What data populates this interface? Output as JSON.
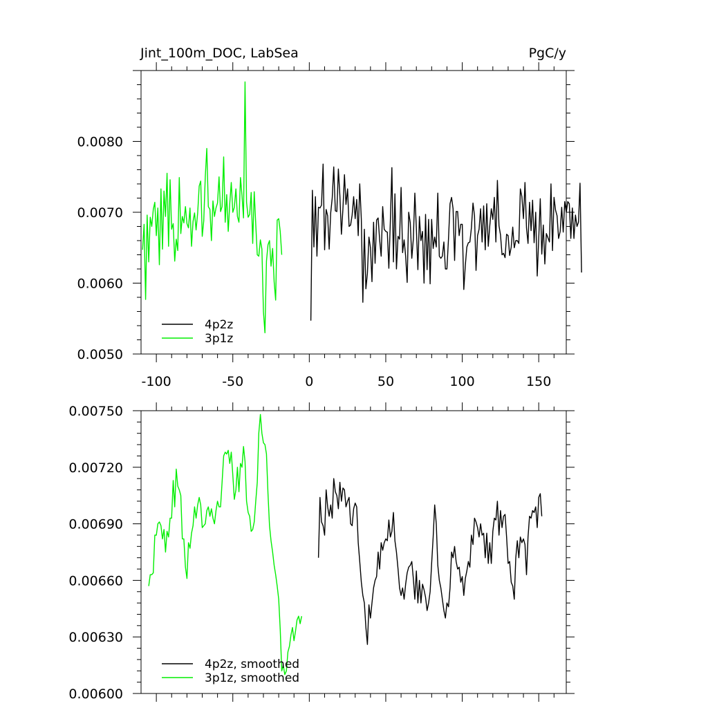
{
  "chart_data": [
    {
      "type": "line",
      "title_left": "Jint_100m_DOC, LabSea",
      "title_right": "PgC/y",
      "xlim": [
        -110,
        168
      ],
      "ylim": [
        0.005,
        0.009
      ],
      "xticks": [
        -100,
        -50,
        0,
        50,
        100,
        150
      ],
      "xtick_labels": [
        "-100",
        "-50",
        "0",
        "50",
        "100",
        "150"
      ],
      "yticks": [
        0.005,
        0.006,
        0.007,
        0.008
      ],
      "ytick_labels": [
        "0.0050",
        "0.0060",
        "0.0070",
        "0.0080"
      ],
      "legend": {
        "position": "bottom-left",
        "entries": [
          "4p2z",
          "3p1z"
        ]
      },
      "series": [
        {
          "name": "4p2z",
          "color": "#000000",
          "x_start": 1,
          "x_step": 1,
          "values": [
            0.00547,
            0.00731,
            0.00651,
            0.00722,
            0.00638,
            0.00707,
            0.00706,
            0.0071,
            0.00768,
            0.00647,
            0.00704,
            0.00695,
            0.00648,
            0.00699,
            0.0072,
            0.00764,
            0.00702,
            0.00701,
            0.00761,
            0.00723,
            0.00669,
            0.00705,
            0.00753,
            0.00711,
            0.00733,
            0.0068,
            0.00682,
            0.00696,
            0.00722,
            0.00691,
            0.00718,
            0.00667,
            0.0074,
            0.0069,
            0.00573,
            0.00676,
            0.00592,
            0.00614,
            0.00665,
            0.0065,
            0.00602,
            0.00686,
            0.00628,
            0.00689,
            0.00692,
            0.00661,
            0.00638,
            0.00708,
            0.00676,
            0.00673,
            0.00672,
            0.00621,
            0.00688,
            0.00763,
            0.0063,
            0.00726,
            0.0062,
            0.00666,
            0.00662,
            0.00735,
            0.00643,
            0.00661,
            0.00638,
            0.00601,
            0.007,
            0.00685,
            0.00635,
            0.00662,
            0.00727,
            0.00677,
            0.00619,
            0.00694,
            0.0066,
            0.00673,
            0.006,
            0.00697,
            0.00619,
            0.0069,
            0.00599,
            0.0069,
            0.00649,
            0.00665,
            0.00651,
            0.00727,
            0.00638,
            0.00635,
            0.00638,
            0.00658,
            0.0062,
            0.0062,
            0.00663,
            0.00712,
            0.00721,
            0.00705,
            0.00632,
            0.00701,
            0.00701,
            0.00667,
            0.00683,
            0.00683,
            0.00591,
            0.00625,
            0.00651,
            0.00657,
            0.00658,
            0.00678,
            0.00713,
            0.00695,
            0.00618,
            0.00667,
            0.00676,
            0.00705,
            0.00658,
            0.00709,
            0.00647,
            0.00712,
            0.00652,
            0.00681,
            0.00705,
            0.0069,
            0.00721,
            0.00658,
            0.00745,
            0.00681,
            0.00668,
            0.0064,
            0.00642,
            0.00636,
            0.00669,
            0.00667,
            0.00639,
            0.00651,
            0.00679,
            0.0065,
            0.0066,
            0.0066,
            0.00656,
            0.00733,
            0.00722,
            0.00691,
            0.00742,
            0.00678,
            0.00656,
            0.00714,
            0.00674,
            0.00717,
            0.00657,
            0.007,
            0.0061,
            0.00663,
            0.00719,
            0.00641,
            0.00682,
            0.00627,
            0.0067,
            0.00664,
            0.00658,
            0.0074,
            0.00646,
            0.00721,
            0.00703,
            0.00695,
            0.00663,
            0.00673,
            0.00707,
            0.00672,
            0.00715,
            0.007,
            0.00715,
            0.00712,
            0.00663,
            0.00706,
            0.00663,
            0.00696,
            0.0068,
            0.00686,
            0.00741,
            0.00615
          ]
        },
        {
          "name": "3p1z",
          "color": "#00ee00",
          "x_start": -109,
          "x_step": 1,
          "values": [
            0.00647,
            0.00683,
            0.00577,
            0.00696,
            0.0063,
            0.00693,
            0.0068,
            0.00704,
            0.00714,
            0.00667,
            0.00706,
            0.00626,
            0.00733,
            0.00648,
            0.0073,
            0.00694,
            0.00755,
            0.00652,
            0.00746,
            0.00676,
            0.00684,
            0.00631,
            0.00662,
            0.00646,
            0.00749,
            0.0067,
            0.00694,
            0.00685,
            0.00708,
            0.00684,
            0.00678,
            0.00706,
            0.00652,
            0.00687,
            0.00699,
            0.00675,
            0.00699,
            0.00737,
            0.00744,
            0.00666,
            0.00688,
            0.0075,
            0.0079,
            0.00708,
            0.00704,
            0.0066,
            0.00716,
            0.00694,
            0.00706,
            0.00713,
            0.0075,
            0.00701,
            0.00708,
            0.00778,
            0.00686,
            0.00725,
            0.00673,
            0.00712,
            0.00742,
            0.007,
            0.00707,
            0.00733,
            0.00694,
            0.00686,
            0.00749,
            0.00724,
            0.00692,
            0.00884,
            0.00714,
            0.00693,
            0.00697,
            0.00728,
            0.00656,
            0.00729,
            0.00683,
            0.0064,
            0.00638,
            0.00661,
            0.00648,
            0.0056,
            0.0053,
            0.00631,
            0.00654,
            0.0066,
            0.00624,
            0.00649,
            0.00602,
            0.00576,
            0.00689,
            0.00691,
            0.00673,
            0.0064
          ]
        }
      ]
    },
    {
      "type": "line",
      "xlim": [
        -110,
        168
      ],
      "ylim": [
        0.006,
        0.0075
      ],
      "yticks": [
        0.006,
        0.0063,
        0.0066,
        0.0069,
        0.0072,
        0.0075
      ],
      "ytick_labels": [
        "0.00600",
        "0.00630",
        "0.00660",
        "0.00690",
        "0.00720",
        "0.00750"
      ],
      "legend": {
        "position": "bottom-left",
        "entries": [
          "4p2z, smoothed",
          "3p1z, smoothed"
        ]
      },
      "series": [
        {
          "name": "4p2z, smoothed",
          "color": "#000000",
          "x_start": 6,
          "x_step": 1,
          "values": [
            0.00672,
            0.00704,
            0.00691,
            0.00689,
            0.00684,
            0.00708,
            0.00699,
            0.00694,
            0.007,
            0.00693,
            0.00714,
            0.00707,
            0.00705,
            0.00698,
            0.00712,
            0.00702,
            0.00709,
            0.00708,
            0.00699,
            0.00702,
            0.00704,
            0.0069,
            0.00689,
            0.00698,
            0.00701,
            0.00699,
            0.0068,
            0.0067,
            0.00659,
            0.00652,
            0.00648,
            0.00635,
            0.00626,
            0.00647,
            0.0064,
            0.00648,
            0.00656,
            0.0066,
            0.00662,
            0.00675,
            0.00666,
            0.0068,
            0.00676,
            0.0068,
            0.00682,
            0.00681,
            0.00692,
            0.00683,
            0.00686,
            0.00696,
            0.00681,
            0.00675,
            0.00666,
            0.00656,
            0.00652,
            0.00656,
            0.0065,
            0.00658,
            0.00664,
            0.00667,
            0.00668,
            0.0067,
            0.00661,
            0.0065,
            0.00665,
            0.00648,
            0.0066,
            0.00648,
            0.00658,
            0.00655,
            0.00651,
            0.00644,
            0.00648,
            0.00654,
            0.00669,
            0.00683,
            0.007,
            0.0069,
            0.00668,
            0.0066,
            0.00656,
            0.0065,
            0.00644,
            0.0064,
            0.00648,
            0.00646,
            0.00656,
            0.00675,
            0.00672,
            0.00678,
            0.0067,
            0.00666,
            0.00667,
            0.00659,
            0.00662,
            0.00652,
            0.00661,
            0.00665,
            0.0067,
            0.00667,
            0.00684,
            0.00679,
            0.00693,
            0.00691,
            0.00688,
            0.00683,
            0.0069,
            0.00684,
            0.00685,
            0.00672,
            0.00685,
            0.00669,
            0.0068,
            0.00669,
            0.00686,
            0.00693,
            0.00692,
            0.00702,
            0.00684,
            0.00697,
            0.00688,
            0.00694,
            0.00695,
            0.00683,
            0.00669,
            0.0067,
            0.00659,
            0.00657,
            0.0065,
            0.00672,
            0.00681,
            0.00672,
            0.00683,
            0.0068,
            0.00682,
            0.00679,
            0.00663,
            0.00683,
            0.00694,
            0.00693,
            0.00697,
            0.00696,
            0.00699,
            0.00688,
            0.00704,
            0.00706,
            0.00694
          ]
        },
        {
          "name": "3p1z, smoothed",
          "color": "#00ee00",
          "x_start": -105,
          "x_step": 1,
          "values": [
            0.00657,
            0.00663,
            0.00663,
            0.00664,
            0.00684,
            0.00684,
            0.0069,
            0.00691,
            0.00689,
            0.00682,
            0.00687,
            0.00675,
            0.00686,
            0.00683,
            0.00693,
            0.00693,
            0.00713,
            0.00699,
            0.00719,
            0.0071,
            0.00708,
            0.00705,
            0.00682,
            0.00682,
            0.00667,
            0.00661,
            0.0068,
            0.00677,
            0.00685,
            0.00689,
            0.00699,
            0.00693,
            0.007,
            0.00704,
            0.007,
            0.00688,
            0.00689,
            0.0069,
            0.00697,
            0.00699,
            0.00694,
            0.00698,
            0.00693,
            0.0069,
            0.00697,
            0.00702,
            0.00699,
            0.00699,
            0.00712,
            0.00726,
            0.00728,
            0.00727,
            0.00729,
            0.00722,
            0.00728,
            0.00716,
            0.00703,
            0.00708,
            0.0072,
            0.00707,
            0.00722,
            0.0072,
            0.00731,
            0.00723,
            0.00702,
            0.00696,
            0.00694,
            0.00686,
            0.00687,
            0.00691,
            0.00702,
            0.00712,
            0.00738,
            0.00748,
            0.00738,
            0.00733,
            0.00732,
            0.00727,
            0.00706,
            0.00689,
            0.00681,
            0.00675,
            0.00668,
            0.00663,
            0.00657,
            0.0065,
            0.00634,
            0.00612,
            0.00615,
            0.0061,
            0.00612,
            0.00622,
            0.00625,
            0.00631,
            0.00635,
            0.00628,
            0.00633,
            0.00639,
            0.00641,
            0.00637,
            0.00641
          ]
        }
      ]
    }
  ]
}
